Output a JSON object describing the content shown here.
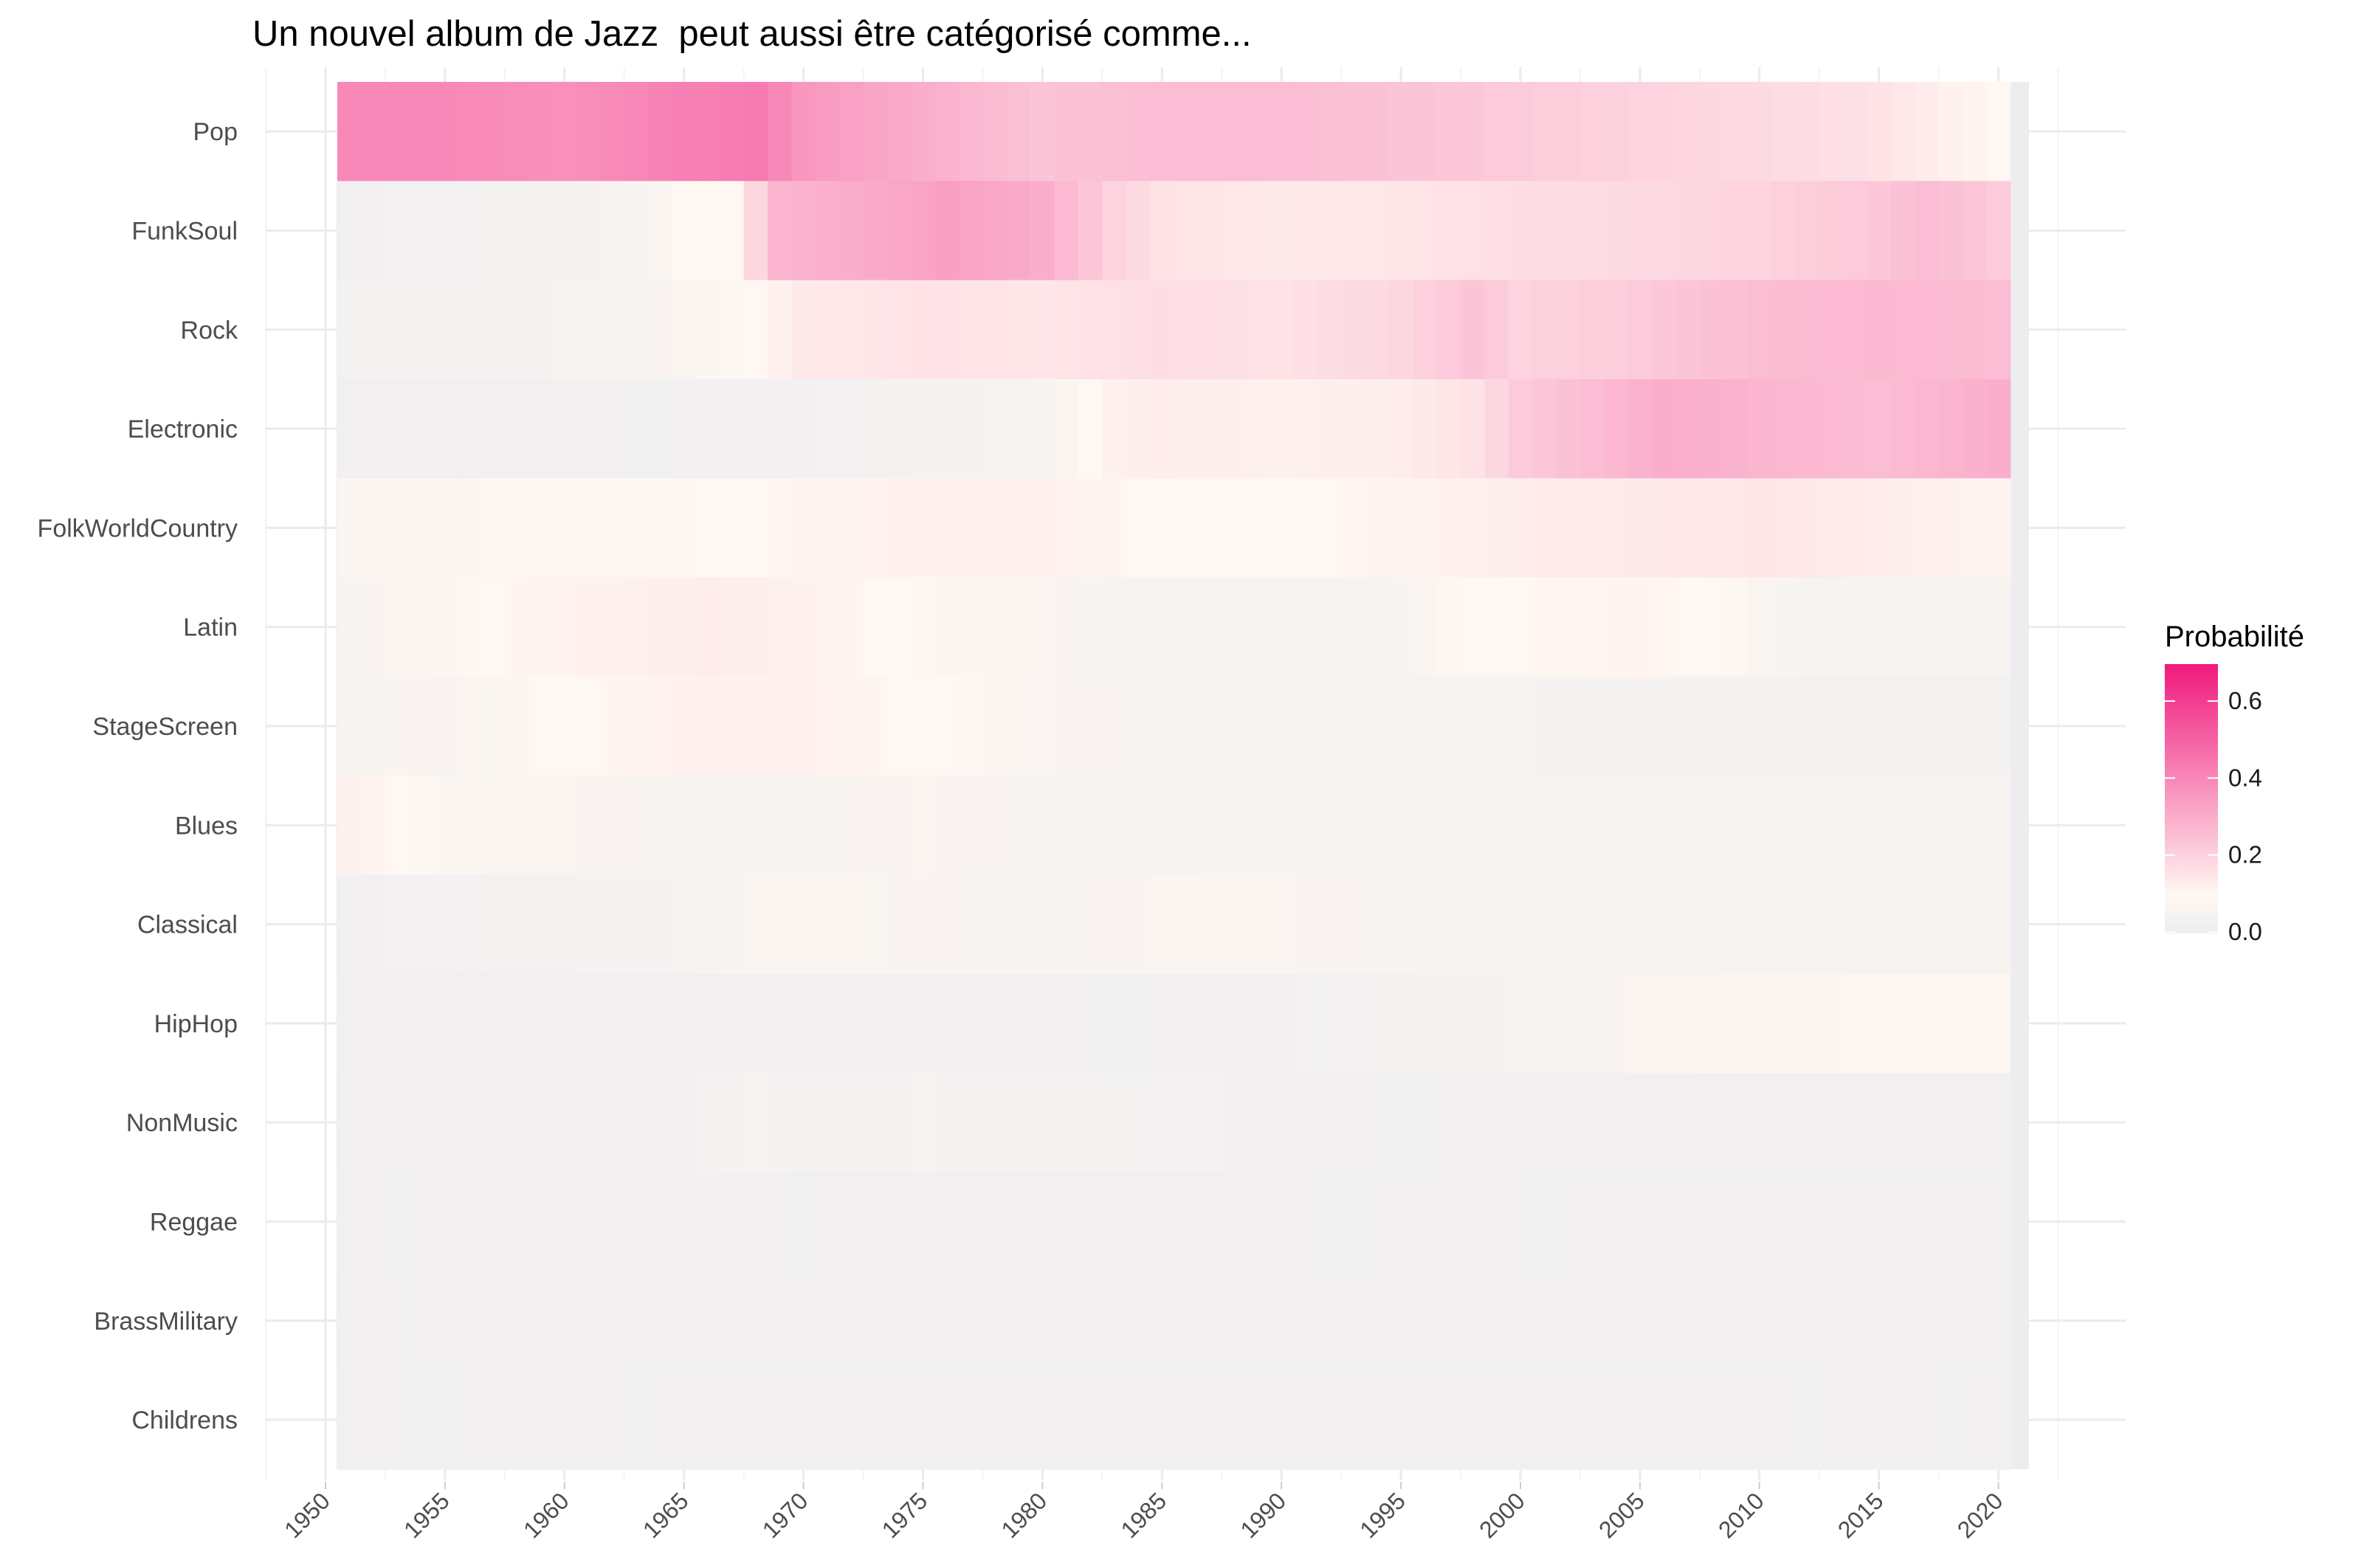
{
  "chart_data": {
    "type": "heatmap",
    "title": "Un nouvel album de Jazz  peut aussi être catégorisé comme...",
    "xlabel": "",
    "ylabel": "",
    "x_ticks": [
      1950,
      1955,
      1960,
      1965,
      1970,
      1975,
      1980,
      1985,
      1990,
      1995,
      2000,
      2005,
      2010,
      2015,
      2020
    ],
    "xlim": [
      1951,
      2021
    ],
    "categories": [
      "Pop",
      "FunkSoul",
      "Rock",
      "Electronic",
      "FolkWorldCountry",
      "Latin",
      "StageScreen",
      "Blues",
      "Classical",
      "HipHop",
      "NonMusic",
      "Reggae",
      "BrassMilitary",
      "Childrens"
    ],
    "years": [
      1951,
      2020
    ],
    "series_keyframes": [
      {
        "name": "Pop",
        "points": [
          [
            1951,
            0.4
          ],
          [
            1955,
            0.4
          ],
          [
            1960,
            0.38
          ],
          [
            1965,
            0.42
          ],
          [
            1968,
            0.44
          ],
          [
            1970,
            0.36
          ],
          [
            1975,
            0.3
          ],
          [
            1980,
            0.24
          ],
          [
            1985,
            0.26
          ],
          [
            1990,
            0.26
          ],
          [
            1995,
            0.24
          ],
          [
            2000,
            0.22
          ],
          [
            2005,
            0.2
          ],
          [
            2010,
            0.18
          ],
          [
            2015,
            0.16
          ],
          [
            2018,
            0.12
          ],
          [
            2020,
            0.1
          ]
        ]
      },
      {
        "name": "FunkSoul",
        "points": [
          [
            1951,
            0.03
          ],
          [
            1960,
            0.04
          ],
          [
            1963,
            0.06
          ],
          [
            1965,
            0.1
          ],
          [
            1967,
            0.1
          ],
          [
            1969,
            0.28
          ],
          [
            1972,
            0.3
          ],
          [
            1976,
            0.34
          ],
          [
            1980,
            0.3
          ],
          [
            1983,
            0.2
          ],
          [
            1985,
            0.16
          ],
          [
            1990,
            0.14
          ],
          [
            1995,
            0.15
          ],
          [
            2000,
            0.17
          ],
          [
            2005,
            0.18
          ],
          [
            2010,
            0.2
          ],
          [
            2015,
            0.23
          ],
          [
            2017,
            0.26
          ],
          [
            2020,
            0.22
          ]
        ]
      },
      {
        "name": "Rock",
        "points": [
          [
            1951,
            0.04
          ],
          [
            1960,
            0.05
          ],
          [
            1965,
            0.07
          ],
          [
            1968,
            0.1
          ],
          [
            1970,
            0.14
          ],
          [
            1975,
            0.16
          ],
          [
            1980,
            0.15
          ],
          [
            1985,
            0.17
          ],
          [
            1990,
            0.16
          ],
          [
            1995,
            0.19
          ],
          [
            1998,
            0.24
          ],
          [
            2000,
            0.2
          ],
          [
            2005,
            0.22
          ],
          [
            2010,
            0.26
          ],
          [
            2015,
            0.27
          ],
          [
            2020,
            0.26
          ]
        ]
      },
      {
        "name": "Electronic",
        "points": [
          [
            1951,
            0.02
          ],
          [
            1960,
            0.02
          ],
          [
            1970,
            0.03
          ],
          [
            1978,
            0.05
          ],
          [
            1981,
            0.07
          ],
          [
            1983,
            0.12
          ],
          [
            1985,
            0.13
          ],
          [
            1990,
            0.12
          ],
          [
            1995,
            0.13
          ],
          [
            1998,
            0.16
          ],
          [
            2000,
            0.22
          ],
          [
            2003,
            0.26
          ],
          [
            2006,
            0.3
          ],
          [
            2010,
            0.28
          ],
          [
            2015,
            0.26
          ],
          [
            2020,
            0.3
          ]
        ]
      },
      {
        "name": "FolkWorldCountry",
        "points": [
          [
            1951,
            0.08
          ],
          [
            1960,
            0.09
          ],
          [
            1965,
            0.09
          ],
          [
            1970,
            0.11
          ],
          [
            1975,
            0.12
          ],
          [
            1980,
            0.12
          ],
          [
            1985,
            0.1
          ],
          [
            1990,
            0.1
          ],
          [
            1995,
            0.11
          ],
          [
            2000,
            0.13
          ],
          [
            2005,
            0.14
          ],
          [
            2010,
            0.15
          ],
          [
            2015,
            0.13
          ],
          [
            2020,
            0.11
          ]
        ]
      },
      {
        "name": "Latin",
        "points": [
          [
            1951,
            0.06
          ],
          [
            1955,
            0.08
          ],
          [
            1958,
            0.11
          ],
          [
            1962,
            0.12
          ],
          [
            1966,
            0.13
          ],
          [
            1970,
            0.12
          ],
          [
            1975,
            0.09
          ],
          [
            1980,
            0.07
          ],
          [
            1985,
            0.05
          ],
          [
            1990,
            0.05
          ],
          [
            1995,
            0.06
          ],
          [
            1998,
            0.1
          ],
          [
            2005,
            0.11
          ],
          [
            2009,
            0.09
          ],
          [
            2012,
            0.05
          ],
          [
            2020,
            0.05
          ]
        ]
      },
      {
        "name": "StageScreen",
        "points": [
          [
            1951,
            0.06
          ],
          [
            1956,
            0.07
          ],
          [
            1960,
            0.1
          ],
          [
            1965,
            0.12
          ],
          [
            1970,
            0.12
          ],
          [
            1975,
            0.1
          ],
          [
            1980,
            0.07
          ],
          [
            1985,
            0.06
          ],
          [
            1990,
            0.05
          ],
          [
            2000,
            0.05
          ],
          [
            2010,
            0.04
          ],
          [
            2020,
            0.04
          ]
        ]
      },
      {
        "name": "Blues",
        "points": [
          [
            1951,
            0.12
          ],
          [
            1953,
            0.1
          ],
          [
            1955,
            0.08
          ],
          [
            1960,
            0.07
          ],
          [
            1965,
            0.06
          ],
          [
            1970,
            0.06
          ],
          [
            1975,
            0.07
          ],
          [
            1980,
            0.06
          ],
          [
            1985,
            0.05
          ],
          [
            1990,
            0.06
          ],
          [
            1995,
            0.05
          ],
          [
            2000,
            0.05
          ],
          [
            2010,
            0.05
          ],
          [
            2020,
            0.05
          ]
        ]
      },
      {
        "name": "Classical",
        "points": [
          [
            1951,
            0.03
          ],
          [
            1960,
            0.04
          ],
          [
            1965,
            0.05
          ],
          [
            1968,
            0.07
          ],
          [
            1972,
            0.07
          ],
          [
            1980,
            0.06
          ],
          [
            1985,
            0.07
          ],
          [
            1990,
            0.07
          ],
          [
            1995,
            0.06
          ],
          [
            2000,
            0.06
          ],
          [
            2005,
            0.05
          ],
          [
            2010,
            0.05
          ],
          [
            2020,
            0.05
          ]
        ]
      },
      {
        "name": "HipHop",
        "points": [
          [
            1951,
            0.02
          ],
          [
            1980,
            0.02
          ],
          [
            1990,
            0.03
          ],
          [
            1995,
            0.04
          ],
          [
            2000,
            0.05
          ],
          [
            2005,
            0.07
          ],
          [
            2010,
            0.08
          ],
          [
            2015,
            0.09
          ],
          [
            2020,
            0.09
          ]
        ]
      },
      {
        "name": "NonMusic",
        "points": [
          [
            1951,
            0.03
          ],
          [
            1960,
            0.03
          ],
          [
            1965,
            0.03
          ],
          [
            1968,
            0.05
          ],
          [
            1972,
            0.04
          ],
          [
            1975,
            0.05
          ],
          [
            1978,
            0.04
          ],
          [
            1983,
            0.04
          ],
          [
            1988,
            0.03
          ],
          [
            2000,
            0.02
          ],
          [
            2020,
            0.02
          ]
        ]
      },
      {
        "name": "Reggae",
        "points": [
          [
            1951,
            0.02
          ],
          [
            1957,
            0.03
          ],
          [
            1962,
            0.03
          ],
          [
            1967,
            0.03
          ],
          [
            1972,
            0.02
          ],
          [
            1990,
            0.02
          ],
          [
            1997,
            0.03
          ],
          [
            2003,
            0.02
          ],
          [
            2020,
            0.02
          ]
        ]
      },
      {
        "name": "BrassMilitary",
        "points": [
          [
            1951,
            0.03
          ],
          [
            1955,
            0.02
          ],
          [
            2020,
            0.02
          ]
        ]
      },
      {
        "name": "Childrens",
        "points": [
          [
            1951,
            0.02
          ],
          [
            1960,
            0.03
          ],
          [
            1965,
            0.02
          ],
          [
            2010,
            0.02
          ],
          [
            2015,
            0.03
          ],
          [
            2020,
            0.02
          ]
        ]
      }
    ],
    "colorscale": {
      "title": "Probabilité",
      "min": 0,
      "max": 0.7,
      "ticks": [
        0.0,
        0.2,
        0.4,
        0.6
      ],
      "tick_labels": [
        "0.0",
        "0.2",
        "0.4",
        "0.6"
      ],
      "colors": {
        "low": "#ededf0",
        "mid": "#fff8f2",
        "high": "#f0197d"
      }
    },
    "panel_background": "#ebebeb",
    "grid": true
  }
}
